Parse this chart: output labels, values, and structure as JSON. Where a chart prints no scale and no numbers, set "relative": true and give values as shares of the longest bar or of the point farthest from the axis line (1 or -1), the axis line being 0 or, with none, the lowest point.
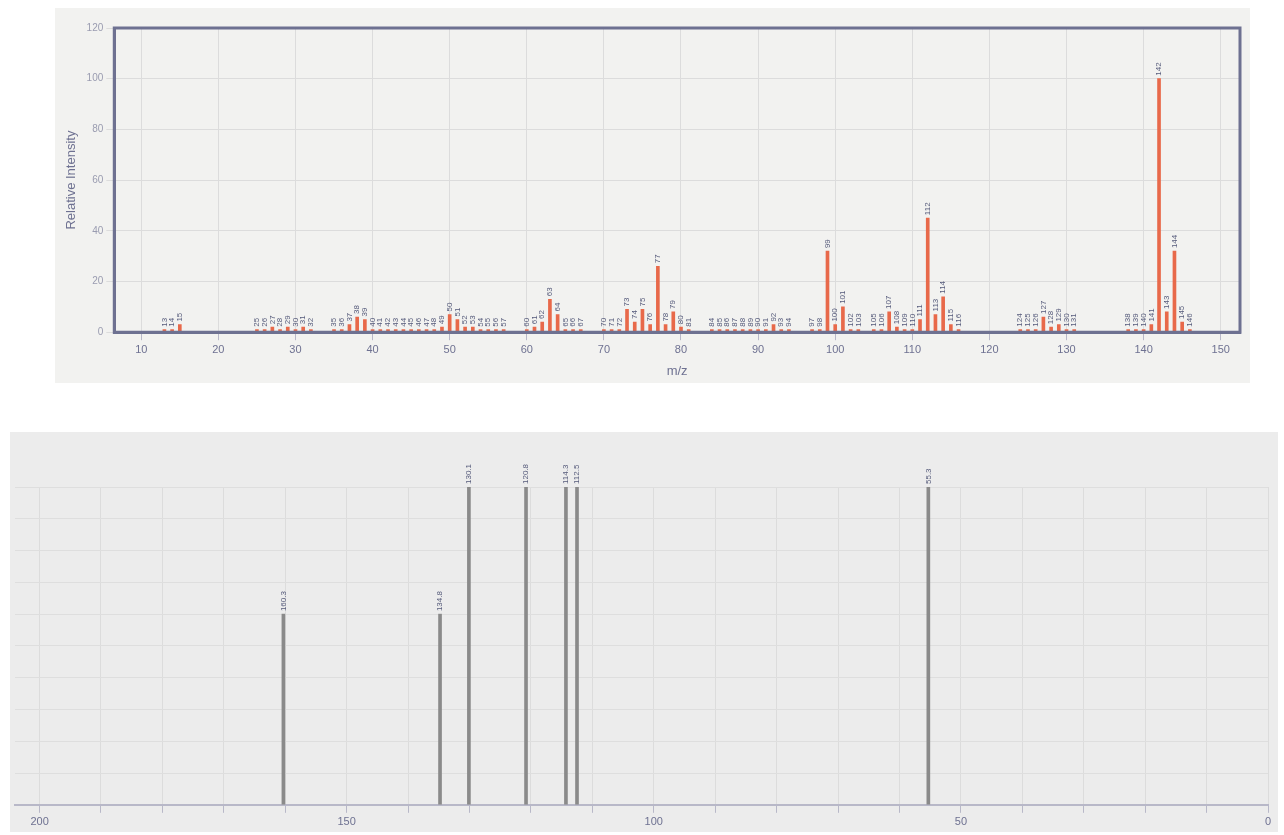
{
  "chart_data": [
    {
      "type": "bar",
      "xlabel": "m/z",
      "ylabel": "Relative Intensity",
      "color": "#e8694a",
      "x": [
        13,
        14,
        15,
        25,
        26,
        27,
        28,
        29,
        30,
        31,
        32,
        35,
        36,
        37,
        38,
        39,
        40,
        41,
        42,
        43,
        44,
        45,
        46,
        47,
        48,
        49,
        50,
        51,
        52,
        53,
        54,
        55,
        56,
        57,
        60,
        61,
        62,
        63,
        64,
        65,
        66,
        67,
        70,
        71,
        72,
        73,
        74,
        75,
        76,
        77,
        78,
        79,
        80,
        81,
        84,
        85,
        86,
        87,
        88,
        89,
        90,
        91,
        92,
        93,
        94,
        97,
        98,
        99,
        100,
        101,
        102,
        103,
        105,
        106,
        107,
        108,
        109,
        110,
        111,
        112,
        113,
        114,
        115,
        116,
        124,
        125,
        126,
        127,
        128,
        129,
        130,
        131,
        138,
        139,
        140,
        141,
        142,
        143,
        144,
        145,
        146
      ],
      "values": [
        1,
        1,
        3,
        1,
        1,
        2,
        1,
        2,
        1,
        2,
        1,
        1,
        1,
        3,
        6,
        5,
        1,
        1,
        1,
        1,
        1,
        1,
        1,
        1,
        1,
        2,
        7,
        5,
        2,
        2,
        1,
        1,
        1,
        1,
        1,
        2,
        4,
        13,
        7,
        1,
        1,
        1,
        1,
        1,
        1,
        9,
        4,
        9,
        3,
        26,
        3,
        8,
        2,
        1,
        1,
        1,
        1,
        1,
        1,
        1,
        1,
        1,
        3,
        1,
        1,
        1,
        1,
        32,
        3,
        10,
        1,
        1,
        1,
        1,
        8,
        2,
        1,
        1,
        5,
        45,
        7,
        14,
        3,
        1,
        1,
        1,
        1,
        6,
        2,
        3,
        1,
        1,
        1,
        1,
        1,
        3,
        100,
        8,
        32,
        4,
        1
      ],
      "annotations": [
        {
          "text": "13",
          "x": 13,
          "y": 1
        },
        {
          "text": "14",
          "x": 14,
          "y": 1
        },
        {
          "text": "15",
          "x": 15,
          "y": 3
        },
        {
          "text": "25",
          "x": 25,
          "y": 1
        },
        {
          "text": "26",
          "x": 26,
          "y": 1
        },
        {
          "text": "27",
          "x": 27,
          "y": 2
        },
        {
          "text": "28",
          "x": 28,
          "y": 1
        },
        {
          "text": "29",
          "x": 29,
          "y": 2
        },
        {
          "text": "30",
          "x": 30,
          "y": 1
        },
        {
          "text": "31",
          "x": 31,
          "y": 2
        },
        {
          "text": "32",
          "x": 32,
          "y": 1
        },
        {
          "text": "35",
          "x": 35,
          "y": 1
        },
        {
          "text": "36",
          "x": 36,
          "y": 1
        },
        {
          "text": "37",
          "x": 37,
          "y": 3
        },
        {
          "text": "38",
          "x": 38,
          "y": 6
        },
        {
          "text": "39",
          "x": 39,
          "y": 5
        },
        {
          "text": "40",
          "x": 40,
          "y": 1
        },
        {
          "text": "41",
          "x": 41,
          "y": 1
        },
        {
          "text": "42",
          "x": 42,
          "y": 1
        },
        {
          "text": "43",
          "x": 43,
          "y": 1
        },
        {
          "text": "44",
          "x": 44,
          "y": 1
        },
        {
          "text": "45",
          "x": 45,
          "y": 1
        },
        {
          "text": "46",
          "x": 46,
          "y": 1
        },
        {
          "text": "47",
          "x": 47,
          "y": 1
        },
        {
          "text": "48",
          "x": 48,
          "y": 1
        },
        {
          "text": "49",
          "x": 49,
          "y": 2
        },
        {
          "text": "50",
          "x": 50,
          "y": 7
        },
        {
          "text": "51",
          "x": 51,
          "y": 5
        },
        {
          "text": "52",
          "x": 52,
          "y": 2
        },
        {
          "text": "53",
          "x": 53,
          "y": 2
        },
        {
          "text": "54",
          "x": 54,
          "y": 1
        },
        {
          "text": "55",
          "x": 55,
          "y": 1
        },
        {
          "text": "56",
          "x": 56,
          "y": 1
        },
        {
          "text": "57",
          "x": 57,
          "y": 1
        },
        {
          "text": "60",
          "x": 60,
          "y": 1
        },
        {
          "text": "61",
          "x": 61,
          "y": 2
        },
        {
          "text": "62",
          "x": 62,
          "y": 4
        },
        {
          "text": "63",
          "x": 63,
          "y": 13
        },
        {
          "text": "64",
          "x": 64,
          "y": 7
        },
        {
          "text": "65",
          "x": 65,
          "y": 1
        },
        {
          "text": "66",
          "x": 66,
          "y": 1
        },
        {
          "text": "67",
          "x": 67,
          "y": 1
        },
        {
          "text": "70",
          "x": 70,
          "y": 1
        },
        {
          "text": "71",
          "x": 71,
          "y": 1
        },
        {
          "text": "72",
          "x": 72,
          "y": 1
        },
        {
          "text": "73",
          "x": 73,
          "y": 9
        },
        {
          "text": "74",
          "x": 74,
          "y": 4
        },
        {
          "text": "75",
          "x": 75,
          "y": 9
        },
        {
          "text": "76",
          "x": 76,
          "y": 3
        },
        {
          "text": "77",
          "x": 77,
          "y": 26
        },
        {
          "text": "78",
          "x": 78,
          "y": 3
        },
        {
          "text": "79",
          "x": 79,
          "y": 8
        },
        {
          "text": "80",
          "x": 80,
          "y": 2
        },
        {
          "text": "81",
          "x": 81,
          "y": 1
        },
        {
          "text": "84",
          "x": 84,
          "y": 1
        },
        {
          "text": "85",
          "x": 85,
          "y": 1
        },
        {
          "text": "86",
          "x": 86,
          "y": 1
        },
        {
          "text": "87",
          "x": 87,
          "y": 1
        },
        {
          "text": "88",
          "x": 88,
          "y": 1
        },
        {
          "text": "89",
          "x": 89,
          "y": 1
        },
        {
          "text": "90",
          "x": 90,
          "y": 1
        },
        {
          "text": "91",
          "x": 91,
          "y": 1
        },
        {
          "text": "92",
          "x": 92,
          "y": 3
        },
        {
          "text": "93",
          "x": 93,
          "y": 1
        },
        {
          "text": "94",
          "x": 94,
          "y": 1
        },
        {
          "text": "97",
          "x": 97,
          "y": 1
        },
        {
          "text": "98",
          "x": 98,
          "y": 1
        },
        {
          "text": "99",
          "x": 99,
          "y": 32
        },
        {
          "text": "100",
          "x": 100,
          "y": 3
        },
        {
          "text": "101",
          "x": 101,
          "y": 10
        },
        {
          "text": "102",
          "x": 102,
          "y": 1
        },
        {
          "text": "103",
          "x": 103,
          "y": 1
        },
        {
          "text": "105",
          "x": 105,
          "y": 1
        },
        {
          "text": "106",
          "x": 106,
          "y": 1
        },
        {
          "text": "107",
          "x": 107,
          "y": 8
        },
        {
          "text": "108",
          "x": 108,
          "y": 2
        },
        {
          "text": "109",
          "x": 109,
          "y": 1
        },
        {
          "text": "110",
          "x": 110,
          "y": 1
        },
        {
          "text": "111",
          "x": 111,
          "y": 5
        },
        {
          "text": "112",
          "x": 112,
          "y": 45
        },
        {
          "text": "113",
          "x": 113,
          "y": 7
        },
        {
          "text": "114",
          "x": 114,
          "y": 14
        },
        {
          "text": "115",
          "x": 115,
          "y": 3
        },
        {
          "text": "116",
          "x": 116,
          "y": 1
        },
        {
          "text": "124",
          "x": 124,
          "y": 1
        },
        {
          "text": "125",
          "x": 125,
          "y": 1
        },
        {
          "text": "126",
          "x": 126,
          "y": 1
        },
        {
          "text": "127",
          "x": 127,
          "y": 6
        },
        {
          "text": "128",
          "x": 128,
          "y": 2
        },
        {
          "text": "129",
          "x": 129,
          "y": 3
        },
        {
          "text": "130",
          "x": 130,
          "y": 1
        },
        {
          "text": "131",
          "x": 131,
          "y": 1
        },
        {
          "text": "138",
          "x": 138,
          "y": 1
        },
        {
          "text": "139",
          "x": 139,
          "y": 1
        },
        {
          "text": "140",
          "x": 140,
          "y": 1
        },
        {
          "text": "141",
          "x": 141,
          "y": 3
        },
        {
          "text": "142",
          "x": 142,
          "y": 100
        },
        {
          "text": "143",
          "x": 143,
          "y": 8
        },
        {
          "text": "144",
          "x": 144,
          "y": 32
        },
        {
          "text": "145",
          "x": 145,
          "y": 4
        },
        {
          "text": "146",
          "x": 146,
          "y": 1
        }
      ],
      "xlim": [
        6.5,
        152.5
      ],
      "xticks": [
        10,
        20,
        30,
        40,
        50,
        60,
        70,
        80,
        90,
        100,
        110,
        120,
        130,
        140,
        150
      ],
      "ylim": [
        0,
        120
      ],
      "yticks": [
        0,
        20,
        40,
        60,
        80,
        100,
        120
      ],
      "grid": true
    },
    {
      "type": "bar",
      "relative": true,
      "color": "#8a8a8a",
      "x": [
        160.3,
        134.8,
        130.1,
        120.8,
        114.3,
        112.5,
        55.3
      ],
      "values": [
        0.6,
        0.6,
        1,
        1,
        1,
        1,
        1
      ],
      "annotations": [
        {
          "text": "160.3",
          "x": 160.3,
          "y": 0.6
        },
        {
          "text": "134.8",
          "x": 134.8,
          "y": 0.6
        },
        {
          "text": "130.1",
          "x": 130.1,
          "y": 1
        },
        {
          "text": "120.8",
          "x": 120.8,
          "y": 1
        },
        {
          "text": "114.3",
          "x": 114.3,
          "y": 1
        },
        {
          "text": "112.5",
          "x": 112.5,
          "y": 1
        },
        {
          "text": "55.3",
          "x": 55.3,
          "y": 1
        }
      ],
      "xlim": [
        204,
        0
      ],
      "xticks": [
        200,
        {
          "value": 190,
          "label": null
        },
        {
          "value": 180,
          "label": null
        },
        {
          "value": 170,
          "label": null
        },
        {
          "value": 160,
          "label": null
        },
        150,
        {
          "value": 140,
          "label": null
        },
        {
          "value": 130,
          "label": null
        },
        {
          "value": 120,
          "label": null
        },
        {
          "value": 110,
          "label": null
        },
        100,
        {
          "value": 90,
          "label": null
        },
        {
          "value": 80,
          "label": null
        },
        {
          "value": 70,
          "label": null
        },
        {
          "value": 60,
          "label": null
        },
        50,
        {
          "value": 40,
          "label": null
        },
        {
          "value": 30,
          "label": null
        },
        {
          "value": 20,
          "label": null
        },
        {
          "value": 10,
          "label": null
        },
        0
      ],
      "grid": true
    }
  ]
}
